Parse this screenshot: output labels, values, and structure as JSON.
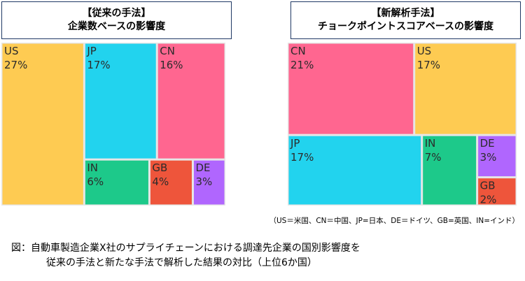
{
  "chart_data": [
    {
      "type": "treemap",
      "title_line1": "【従来の手法】",
      "title_line2": "企業数ベースの影響度",
      "categories": [
        "US",
        "JP",
        "CN",
        "IN",
        "GB",
        "DE"
      ],
      "values": [
        27,
        17,
        16,
        6,
        4,
        3
      ],
      "value_labels": [
        "27%",
        "17%",
        "16%",
        "6%",
        "4%",
        "3%"
      ],
      "colors": [
        "#fecb52",
        "#22d3ee",
        "#ff6690",
        "#1dc98a",
        "#ee553b",
        "#b066fe"
      ]
    },
    {
      "type": "treemap",
      "title_line1": "【新解析手法】",
      "title_line2": "チョークポイントスコアベースの影響度",
      "categories": [
        "CN",
        "US",
        "JP",
        "IN",
        "DE",
        "GB"
      ],
      "values": [
        21,
        17,
        17,
        7,
        3,
        2
      ],
      "value_labels": [
        "21%",
        "17%",
        "17%",
        "7%",
        "3%",
        "2%"
      ],
      "colors": [
        "#ff6690",
        "#fecb52",
        "#22d3ee",
        "#1dc98a",
        "#b066fe",
        "#ee553b"
      ]
    }
  ],
  "legend_note": "（US＝米国、CN＝中国、JP=日本、DE＝ドイツ、GB=英国、IN=インド）",
  "caption": {
    "line1": "図：自動車製造企業X社のサプライチェーンにおける調達先企業の国別影響度を",
    "line2": "従来の手法と新たな手法で解析した結果の対比（上位6か国）"
  }
}
